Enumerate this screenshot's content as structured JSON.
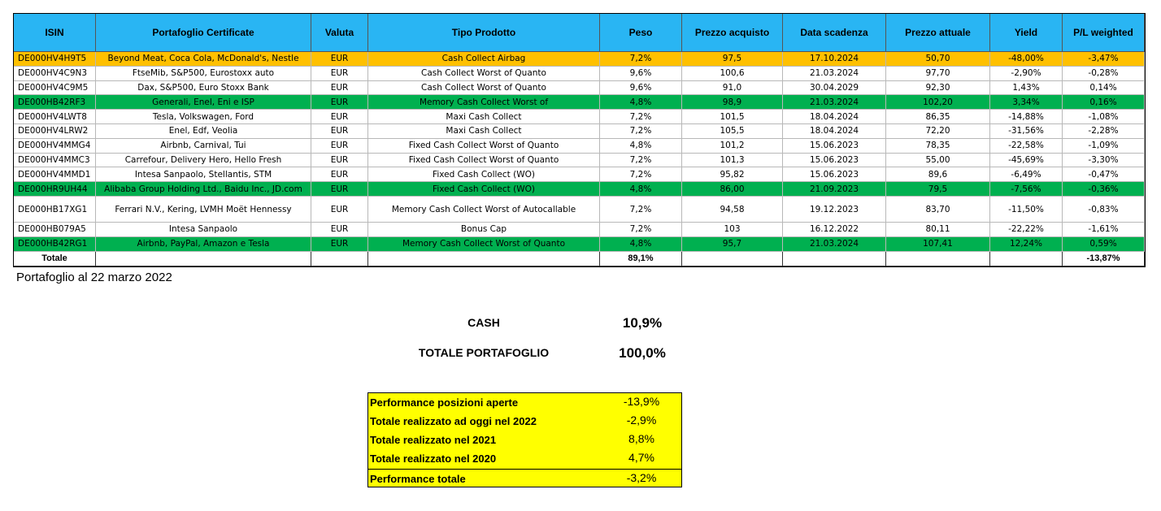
{
  "table": {
    "columns": [
      "ISIN",
      "Portafoglio Certificate",
      "Valuta",
      "Tipo Prodotto",
      "Peso",
      "Prezzo acquisto",
      "Data scadenza",
      "Prezzo attuale",
      "Yield",
      "P/L weighted"
    ],
    "header_color": "#29b5f3",
    "rows": [
      {
        "cells": [
          "DE000HV4H9T5",
          "Beyond Meat, Coca Cola, McDonald's, Nestle",
          "EUR",
          "Cash Collect Airbag",
          "7,2%",
          "97,5",
          "17.10.2024",
          "50,70",
          "-48,00%",
          "-3,47%"
        ],
        "color": "#ffc000"
      },
      {
        "cells": [
          "DE000HV4C9N3",
          "FtseMib, S&P500, Eurostoxx auto",
          "EUR",
          "Cash Collect Worst of Quanto",
          "9,6%",
          "100,6",
          "21.03.2024",
          "97,70",
          "-2,90%",
          "-0,28%"
        ]
      },
      {
        "cells": [
          "DE000HV4C9M5",
          "Dax, S&P500, Euro Stoxx Bank",
          "EUR",
          "Cash Collect Worst of Quanto",
          "9,6%",
          "91,0",
          "30.04.2029",
          "92,30",
          "1,43%",
          "0,14%"
        ]
      },
      {
        "cells": [
          "DE000HB42RF3",
          "Generali, Enel, Eni e ISP",
          "EUR",
          "Memory Cash Collect Worst of",
          "4,8%",
          "98,9",
          "21.03.2024",
          "102,20",
          "3,34%",
          "0,16%"
        ],
        "color": "#00b050"
      },
      {
        "cells": [
          "DE000HV4LWT8",
          "Tesla, Volkswagen, Ford",
          "EUR",
          "Maxi Cash Collect",
          "7,2%",
          "101,5",
          "18.04.2024",
          "86,35",
          "-14,88%",
          "-1,08%"
        ]
      },
      {
        "cells": [
          "DE000HV4LRW2",
          "Enel, Edf, Veolia",
          "EUR",
          "Maxi Cash Collect",
          "7,2%",
          "105,5",
          "18.04.2024",
          "72,20",
          "-31,56%",
          "-2,28%"
        ]
      },
      {
        "cells": [
          "DE000HV4MMG4",
          "Airbnb, Carnival, Tui",
          "EUR",
          "Fixed Cash Collect Worst of Quanto",
          "4,8%",
          "101,2",
          "15.06.2023",
          "78,35",
          "-22,58%",
          "-1,09%"
        ]
      },
      {
        "cells": [
          "DE000HV4MMC3",
          "Carrefour, Delivery Hero, Hello Fresh",
          "EUR",
          "Fixed Cash Collect Worst of Quanto",
          "7,2%",
          "101,3",
          "15.06.2023",
          "55,00",
          "-45,69%",
          "-3,30%"
        ]
      },
      {
        "cells": [
          "DE000HV4MMD1",
          "Intesa Sanpaolo, Stellantis, STM",
          "EUR",
          "Fixed Cash Collect (WO)",
          "7,2%",
          "95,82",
          "15.06.2023",
          "89,6",
          "-6,49%",
          "-0,47%"
        ]
      },
      {
        "cells": [
          "DE000HR9UH44",
          "Alibaba Group Holding Ltd., Baidu Inc., JD.com",
          "EUR",
          "Fixed Cash Collect (WO)",
          "4,8%",
          "86,00",
          "21.09.2023",
          "79,5",
          "-7,56%",
          "-0,36%"
        ],
        "color": "#00b050"
      },
      {
        "cells": [
          "DE000HB17XG1",
          "Ferrari N.V., Kering, LVMH Moët Hennessy",
          "EUR",
          "Memory Cash Collect Worst of  Autocallable",
          "7,2%",
          "94,58",
          "19.12.2023",
          "83,70",
          "-11,50%",
          "-0,83%"
        ]
      },
      {
        "cells": [
          "DE000HB079A5",
          "Intesa Sanpaolo",
          "EUR",
          "Bonus Cap",
          "7,2%",
          "103",
          "16.12.2022",
          "80,11",
          "-22,22%",
          "-1,61%"
        ]
      },
      {
        "cells": [
          "DE000HB42RG1",
          "Airbnb, PayPal, Amazon e Tesla",
          "EUR",
          "Memory Cash Collect Worst of Quanto",
          "4,8%",
          "95,7",
          "21.03.2024",
          "107,41",
          "12,24%",
          "0,59%"
        ],
        "color": "#00b050"
      }
    ],
    "total": {
      "label": "Totale",
      "peso": "89,1%",
      "pl": "-13,87%"
    }
  },
  "caption": "Portafoglio al 22 marzo 2022",
  "summary": [
    {
      "label": "CASH",
      "value": "10,9%"
    },
    {
      "label": "TOTALE PORTAFOGLIO",
      "value": "100,0%"
    }
  ],
  "performance": {
    "color": "#ffff00",
    "rows": [
      {
        "label": "Performance posizioni aperte",
        "value": "-13,9%"
      },
      {
        "label": "Totale realizzato ad oggi nel 2022",
        "value": "-2,9%"
      },
      {
        "label": "Totale realizzato nel 2021",
        "value": "8,8%"
      },
      {
        "label": "Totale realizzato nel 2020",
        "value": "4,7%"
      },
      {
        "label": "Performance totale",
        "value": "-3,2%"
      }
    ]
  }
}
